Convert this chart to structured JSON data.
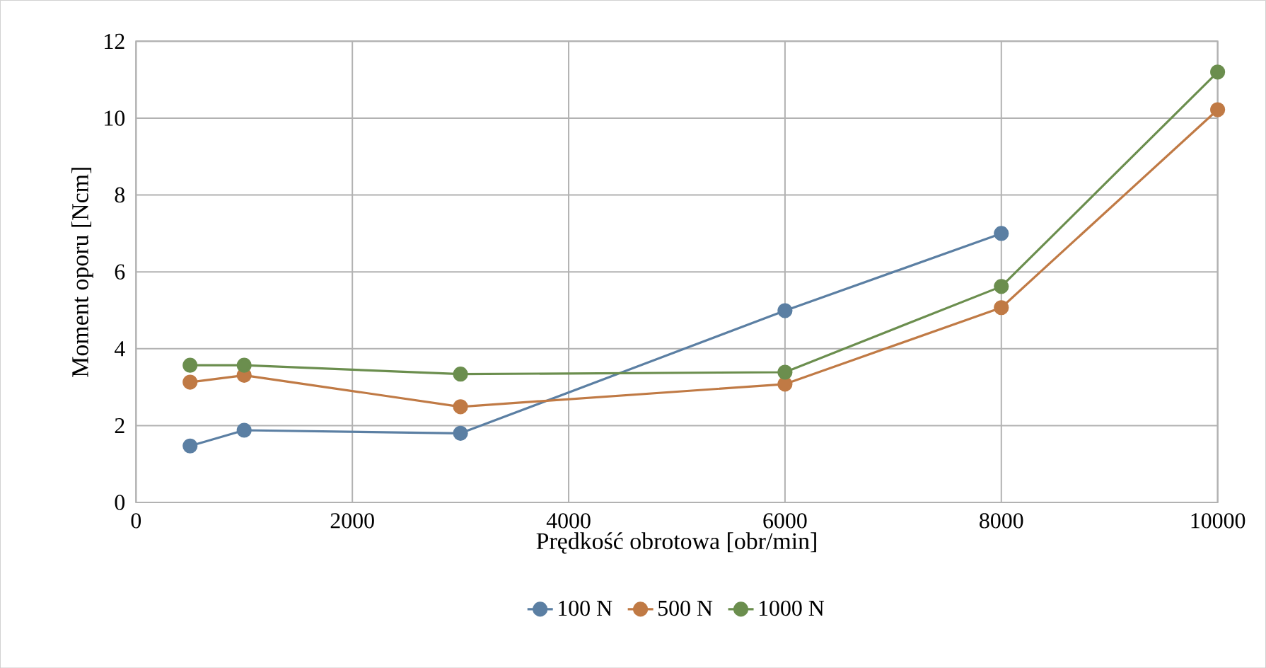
{
  "chart_data": {
    "type": "line",
    "xlabel": "Prędkość obrotowa [obr/min]",
    "ylabel": "Moment oporu [Ncm]",
    "x": [
      500,
      1000,
      3000,
      6000,
      8000,
      10000
    ],
    "series": [
      {
        "name": "100 N",
        "color": "#5b7fa3",
        "values": [
          1.47,
          1.88,
          1.8,
          4.99,
          7.0,
          null
        ]
      },
      {
        "name": "500 N",
        "color": "#c07a45",
        "values": [
          3.13,
          3.31,
          2.49,
          3.08,
          5.07,
          10.22
        ]
      },
      {
        "name": "1000 N",
        "color": "#6b8e4e",
        "values": [
          3.57,
          3.57,
          3.34,
          3.39,
          5.62,
          11.2
        ]
      }
    ],
    "xlim": [
      0,
      10000
    ],
    "xticks": [
      0,
      2000,
      4000,
      6000,
      8000,
      10000
    ],
    "ylim": [
      0,
      12
    ],
    "yticks": [
      0,
      2,
      4,
      6,
      8,
      10,
      12
    ],
    "grid": true,
    "legend": "bottom",
    "marker": "circle",
    "line_style": "solid"
  }
}
